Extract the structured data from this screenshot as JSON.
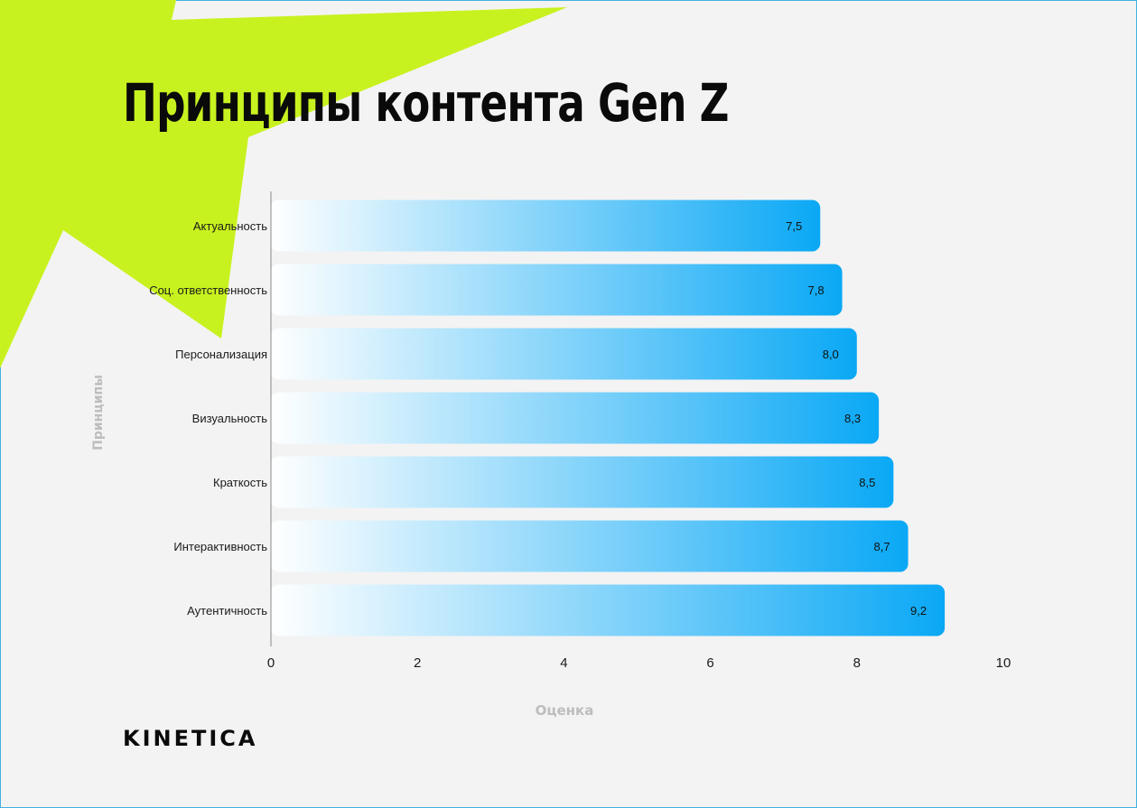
{
  "title": "Принципы контента Gen Z",
  "brand": "KINETICA",
  "colors": {
    "accent_star": "#c8f21f",
    "bar_start": "#ffffff",
    "bar_end": "#0aa8f5",
    "frame": "#3fb2e0",
    "axis_label": "#bdbdbd"
  },
  "chart_data": {
    "type": "bar",
    "orientation": "horizontal",
    "title": "Принципы контента Gen Z",
    "xlabel": "Оценка",
    "ylabel": "Принципы",
    "xlim": [
      0,
      10
    ],
    "x_ticks": [
      0,
      2,
      4,
      6,
      8,
      10
    ],
    "grid": false,
    "categories": [
      "Актуальность",
      "Соц. ответственность",
      "Персонализация",
      "Визуальность",
      "Краткость",
      "Интерактивность",
      "Аутентичность"
    ],
    "values": [
      7.5,
      7.8,
      8.0,
      8.3,
      8.5,
      8.7,
      9.2
    ],
    "data_labels": [
      "7,5",
      "7,8",
      "8,0",
      "8,3",
      "8,5",
      "8,7",
      "9,2"
    ]
  }
}
